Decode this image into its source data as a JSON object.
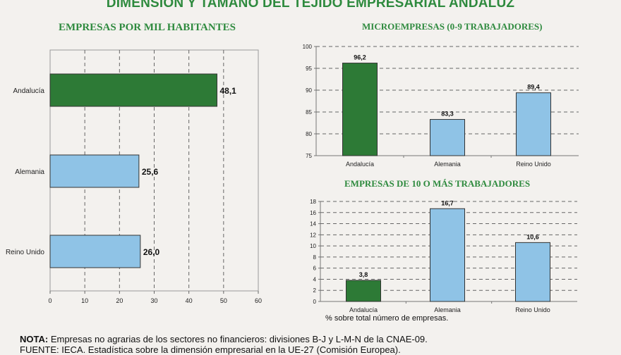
{
  "title": "DIMENSIÓN Y TAMAÑO DEL TEJIDO EMPRESARIAL ANDALUZ",
  "colors": {
    "green": "#2d7a36",
    "blue": "#8fc3e6",
    "title_green": "#2e8a3e"
  },
  "chart_data": [
    {
      "type": "bar",
      "orientation": "horizontal",
      "title": "EMPRESAS POR MIL HABITANTES",
      "categories": [
        "Andalucía",
        "Alemania",
        "Reino Unido"
      ],
      "values": [
        48.1,
        25.6,
        26.0
      ],
      "value_labels": [
        "48,1",
        "25,6",
        "26,0"
      ],
      "bar_colors": [
        "#2d7a36",
        "#8fc3e6",
        "#8fc3e6"
      ],
      "xlim": [
        0,
        60
      ],
      "xticks": [
        0,
        10,
        20,
        30,
        40,
        50,
        60
      ],
      "grid": "vertical dashed"
    },
    {
      "type": "bar",
      "title": "MICROEMPRESAS (0-9 TRABAJADORES)",
      "categories": [
        "Andalucía",
        "Alemania",
        "Reino Unido"
      ],
      "values": [
        96.2,
        83.3,
        89.4
      ],
      "value_labels": [
        "96,2",
        "83,3",
        "89,4"
      ],
      "bar_colors": [
        "#2d7a36",
        "#8fc3e6",
        "#8fc3e6"
      ],
      "ylim": [
        75,
        100
      ],
      "yticks": [
        75,
        80,
        85,
        90,
        95,
        100
      ],
      "grid": "horizontal dashed"
    },
    {
      "type": "bar",
      "title": "EMPRESAS DE 10 O MÁS TRABAJADORES",
      "categories": [
        "Andalucía",
        "Alemania",
        "Reino Unido"
      ],
      "values": [
        3.8,
        16.7,
        10.6
      ],
      "value_labels": [
        "3,8",
        "16,7",
        "10,6"
      ],
      "bar_colors": [
        "#2d7a36",
        "#8fc3e6",
        "#8fc3e6"
      ],
      "ylim": [
        0,
        18
      ],
      "yticks": [
        0,
        2,
        4,
        6,
        8,
        10,
        12,
        14,
        16,
        18
      ],
      "grid": "horizontal dashed",
      "footnote": "% sobre total número de empresas."
    }
  ],
  "note": {
    "label": "NOTA:",
    "text": " Empresas no agrarias de los sectores no financieros: divisiones B-J y L-M-N de la CNAE-09."
  },
  "source_partial": "FUENTE: IECA. Estadística sobre la dimensión empresarial en la UE-27 (Comisión Europea)."
}
